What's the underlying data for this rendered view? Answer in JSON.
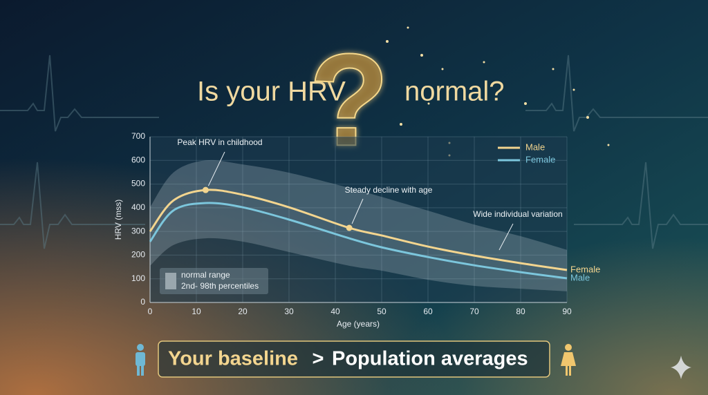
{
  "chart_data": {
    "type": "line",
    "title_start": "Is your HRV",
    "title_mark": "?",
    "title_end": "normal?",
    "xlabel": "Age (years)",
    "ylabel": "HRV (mss)",
    "x": [
      0,
      5,
      12,
      20,
      30,
      43,
      50,
      60,
      70,
      80,
      90
    ],
    "series": [
      {
        "name": "Male",
        "color": "#f3d58f",
        "values": [
          300,
          430,
          475,
          455,
          402,
          315,
          283,
          236,
          198,
          166,
          137
        ]
      },
      {
        "name": "Female",
        "color": "#7cc6dc",
        "values": [
          257,
          388,
          420,
          402,
          350,
          271,
          233,
          192,
          157,
          128,
          102
        ]
      }
    ],
    "band": {
      "name": "normal range",
      "description": "2nd- 98th percentiles",
      "upper": [
        402,
        548,
        600,
        583,
        548,
        484,
        446,
        388,
        329,
        280,
        222
      ],
      "lower": [
        155,
        242,
        271,
        257,
        213,
        155,
        134,
        96,
        70,
        58,
        47
      ]
    },
    "xlim": [
      0,
      90
    ],
    "ylim": [
      0,
      700
    ],
    "xticks": [
      0,
      10,
      20,
      30,
      40,
      50,
      60,
      70,
      80,
      90
    ],
    "yticks": [
      0,
      100,
      200,
      300,
      400,
      500,
      600,
      700
    ],
    "grid": true,
    "legend": "top-right",
    "annotations": [
      "Peak HRV in childhood",
      "Steady decline with age",
      "Wide individual variation"
    ],
    "end_labels": [
      "Female",
      "Male"
    ],
    "footer": {
      "left": "Your baseline",
      "sign": ">",
      "right": "Population averages"
    }
  }
}
